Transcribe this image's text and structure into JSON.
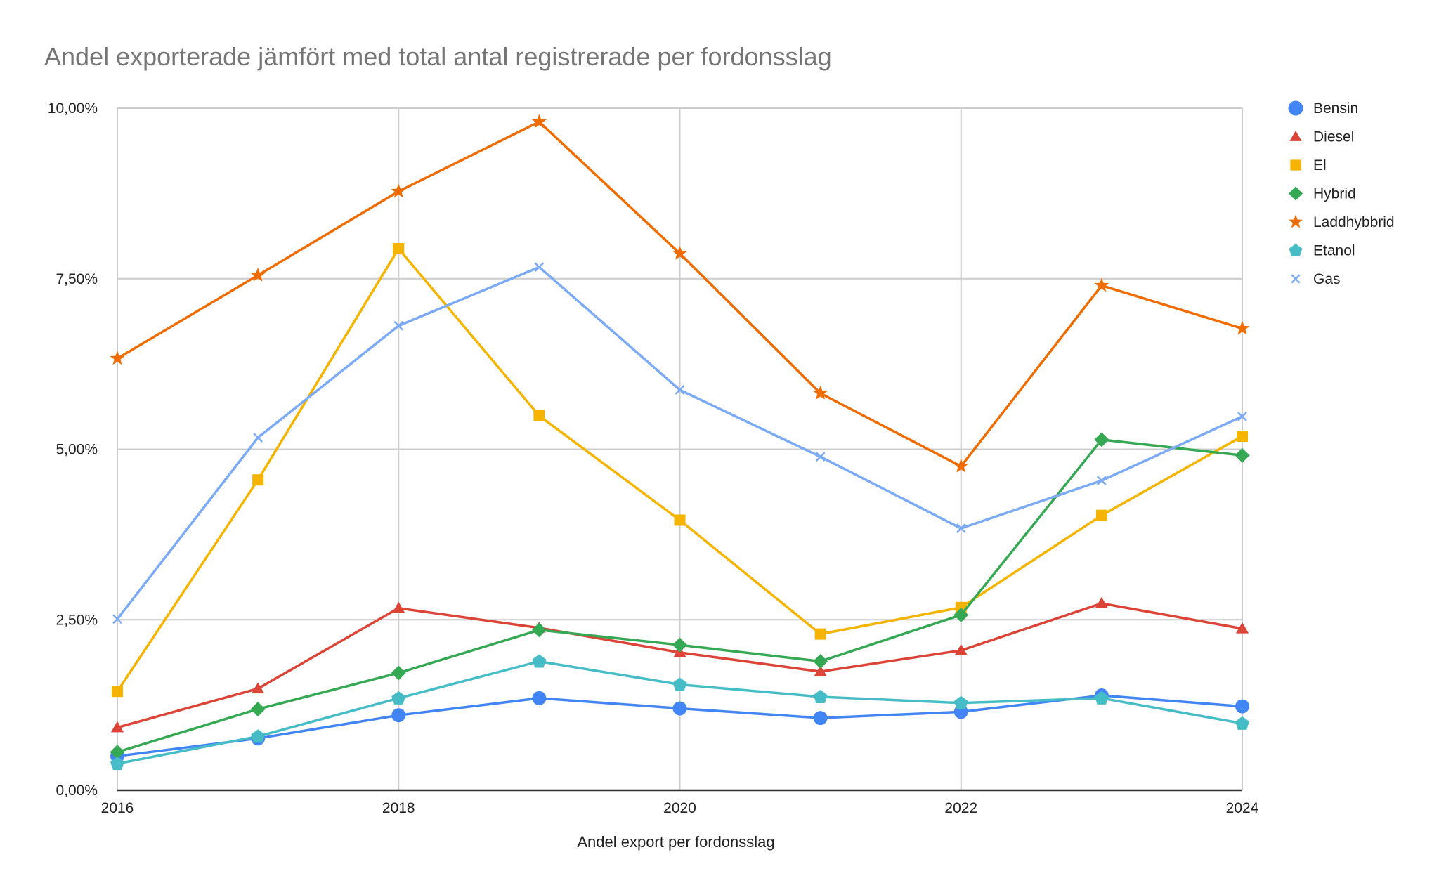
{
  "colors": {
    "Bensin": "#4285F4",
    "Diesel": "#DB4437",
    "El": "#F4B400",
    "Hybrid": "#34A853",
    "Laddhybbrid": "#F06C00",
    "Etanol": "#46BDC6",
    "Gas": "#7BAAF7",
    "grid": "#CCCCCC",
    "axis": "#333333",
    "title": "#757575"
  },
  "chart_data": {
    "type": "line",
    "title": "Andel exporterade jämfört med total antal registrerade per fordonsslag",
    "xlabel": "Andel export  per fordonsslag",
    "ylabel": "",
    "x": [
      2016,
      2017,
      2018,
      2019,
      2020,
      2021,
      2022,
      2023,
      2024
    ],
    "xticks": [
      "2016",
      "2018",
      "2020",
      "2022",
      "2024"
    ],
    "xlim": [
      2016,
      2024
    ],
    "yticks": [
      "0,00%",
      "2,50%",
      "5,00%",
      "7,50%",
      "10,00%"
    ],
    "ylim": [
      0,
      10
    ],
    "y_unit": "%",
    "grid": true,
    "legend_position": "right",
    "series": [
      {
        "name": "Bensin",
        "marker": "circle",
        "values": [
          0.5,
          0.76,
          1.1,
          1.35,
          1.2,
          1.06,
          1.15,
          1.39,
          1.23
        ]
      },
      {
        "name": "Diesel",
        "marker": "triangle",
        "values": [
          0.92,
          1.49,
          2.67,
          2.38,
          2.02,
          1.74,
          2.05,
          2.74,
          2.37
        ]
      },
      {
        "name": "El",
        "marker": "square",
        "values": [
          1.45,
          4.55,
          7.94,
          5.49,
          3.96,
          2.29,
          2.68,
          4.03,
          5.19
        ]
      },
      {
        "name": "Hybrid",
        "marker": "diamond",
        "values": [
          0.56,
          1.19,
          1.72,
          2.35,
          2.13,
          1.89,
          2.57,
          5.14,
          4.91
        ]
      },
      {
        "name": "Laddhybbrid",
        "marker": "star",
        "values": [
          6.33,
          7.55,
          8.78,
          9.8,
          7.87,
          5.82,
          4.75,
          7.4,
          6.77
        ]
      },
      {
        "name": "Etanol",
        "marker": "pentagon",
        "values": [
          0.39,
          0.79,
          1.35,
          1.89,
          1.55,
          1.37,
          1.28,
          1.35,
          0.98
        ]
      },
      {
        "name": "Gas",
        "marker": "x",
        "values": [
          2.51,
          5.17,
          6.81,
          7.67,
          5.87,
          4.89,
          3.84,
          4.54,
          5.48
        ]
      }
    ]
  }
}
